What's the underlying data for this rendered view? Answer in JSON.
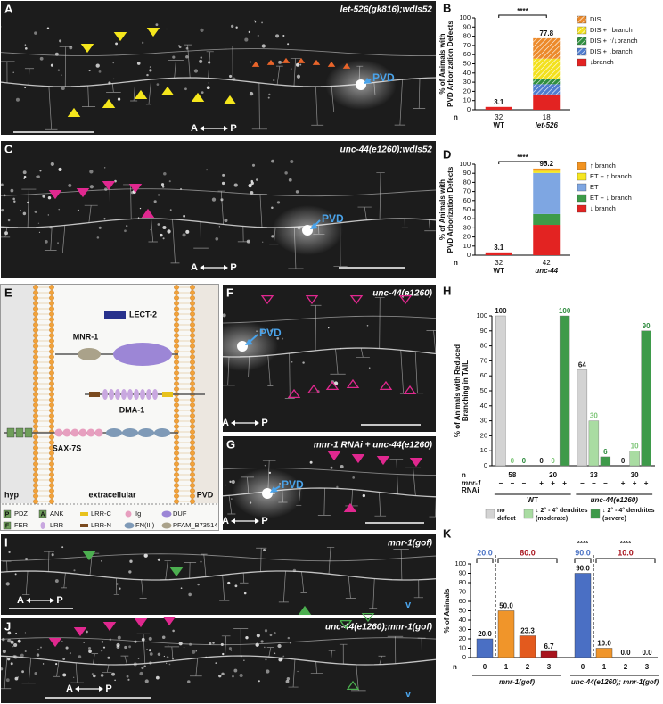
{
  "images": [
    {
      "letter": "A",
      "caption": "let-526(gk816);wdIs52",
      "pvd": "PVD",
      "axis_left": "A",
      "axis_right": "P"
    },
    {
      "letter": "C",
      "caption": "unc-44(e1260);wdIs52",
      "pvd": "PVD",
      "axis_left": "A",
      "axis_right": "P"
    },
    {
      "letter": "F",
      "caption": "unc-44(e1260)",
      "pvd": "PVD",
      "axis_left": "A",
      "axis_right": "P"
    },
    {
      "letter": "G",
      "caption": "mnr-1 RNAi + unc-44(e1260)",
      "pvd": "PVD",
      "axis_left": "A",
      "axis_right": "P"
    },
    {
      "letter": "I",
      "caption": "mnr-1(gof)",
      "axis_left": "A",
      "axis_right": "P",
      "marker": "v"
    },
    {
      "letter": "J",
      "caption": "unc-44(e1260);mnr-1(gof)",
      "axis_left": "A",
      "axis_right": "P",
      "marker": "v"
    }
  ],
  "diagram": {
    "letter": "E",
    "proteins": [
      {
        "label": "LECT-2"
      },
      {
        "label": "MNR-1"
      },
      {
        "label": "DMA-1"
      },
      {
        "label": "SAX-7S"
      }
    ],
    "regions": [
      "hyp",
      "extracellular",
      "PVD"
    ],
    "legend": [
      {
        "icon": "P",
        "label": "PDZ"
      },
      {
        "icon": "A",
        "label": "ANK"
      },
      {
        "label": "LRR-C"
      },
      {
        "label": "Ig"
      },
      {
        "label": "DUF"
      },
      {
        "icon": "F",
        "label": "FER"
      },
      {
        "label": "LRR"
      },
      {
        "label": "LRR-N"
      },
      {
        "label": "FN(III)"
      },
      {
        "label": "PFAM_B73514"
      }
    ]
  },
  "chart_data": [
    {
      "letter": "B",
      "type": "stacked_bar",
      "ylabel": [
        "% of Animals with",
        "PVD Arborization Defects"
      ],
      "categories": [
        "WT",
        "let-526"
      ],
      "n_label": "n",
      "n": [
        32,
        18
      ],
      "totals": [
        3.1,
        77.8
      ],
      "significance": "****",
      "ylim": [
        0,
        100
      ],
      "yticks": [
        0,
        10,
        20,
        30,
        40,
        50,
        60,
        70,
        80,
        90,
        100
      ],
      "series": [
        {
          "name": "↓branch",
          "color": "#e32322",
          "hatch": false,
          "values": [
            3.1,
            16.7
          ]
        },
        {
          "name": "DIS + ↓branch",
          "color": "#4f7ccf",
          "hatch": true,
          "values": [
            0,
            11.1
          ]
        },
        {
          "name": "DIS + ↑/↓branch",
          "color": "#2f8f3f",
          "hatch": true,
          "values": [
            0,
            5.6
          ]
        },
        {
          "name": "DIS + ↑branch",
          "color": "#f3e11d",
          "hatch": true,
          "values": [
            0,
            22.2
          ]
        },
        {
          "name": "DIS",
          "color": "#ec8a2b",
          "hatch": true,
          "values": [
            0,
            22.2
          ]
        }
      ]
    },
    {
      "letter": "D",
      "type": "stacked_bar",
      "ylabel": [
        "% of Animals with",
        "PVD Arborization Defects"
      ],
      "categories": [
        "WT",
        "unc-44"
      ],
      "n_label": "n",
      "n": [
        32,
        42
      ],
      "totals": [
        3.1,
        95.2
      ],
      "significance": "****",
      "ylim": [
        0,
        100
      ],
      "yticks": [
        0,
        10,
        20,
        30,
        40,
        50,
        60,
        70,
        80,
        90,
        100
      ],
      "series": [
        {
          "name": "↓ branch",
          "color": "#e32322",
          "hatch": false,
          "values": [
            3.1,
            33.3
          ]
        },
        {
          "name": "ET + ↓ branch",
          "color": "#3d9b48",
          "hatch": false,
          "values": [
            0,
            11.9
          ]
        },
        {
          "name": "ET",
          "color": "#7ea6e2",
          "hatch": false,
          "values": [
            0,
            45.2
          ]
        },
        {
          "name": "ET + ↑ branch",
          "color": "#f6e61f",
          "hatch": false,
          "values": [
            0,
            2.4
          ]
        },
        {
          "name": "↑ branch",
          "color": "#f29320",
          "hatch": false,
          "values": [
            0,
            2.4
          ]
        }
      ]
    },
    {
      "letter": "H",
      "type": "grouped_bar",
      "ylabel": [
        "% of Animals with Reduced",
        "Branching in TAIL"
      ],
      "n_label": "n",
      "n": [
        58,
        20,
        33,
        30
      ],
      "rnai_label": [
        "mnr-1",
        "RNAi"
      ],
      "rnai": [
        "−",
        "+",
        "−",
        "+"
      ],
      "genotypes": [
        "WT",
        "unc-44(e1260)"
      ],
      "ylim": [
        0,
        100
      ],
      "yticks": [
        0,
        10,
        20,
        30,
        40,
        50,
        60,
        70,
        80,
        90,
        100
      ],
      "series": [
        {
          "name": [
            "no",
            "defect"
          ],
          "color": "#d3d3d3",
          "label_color": "#1a1a1a",
          "values": [
            100,
            0,
            64,
            0
          ]
        },
        {
          "name": [
            "↓ 2° - 4° dendrites",
            "(moderate)"
          ],
          "color": "#a9dca2",
          "label_color": "#7cc576",
          "values": [
            0,
            0,
            30,
            10
          ]
        },
        {
          "name": [
            "↓ 2° - 4° dendrites",
            "(severe)"
          ],
          "color": "#3e9a4a",
          "label_color": "#2e8b3e",
          "values": [
            0,
            100,
            6,
            90
          ]
        }
      ]
    },
    {
      "letter": "K",
      "type": "bar",
      "ylabel": "% of Animals",
      "n_label": "n",
      "ylim": [
        0,
        100
      ],
      "yticks": [
        0,
        10,
        20,
        30,
        40,
        50,
        60,
        70,
        80,
        90,
        100
      ],
      "colors": [
        "#4a6fc4",
        "#f0952a",
        "#e35a1e",
        "#a8141d"
      ],
      "groups": [
        {
          "label": "mnr-1(gof)",
          "categories": [
            "0",
            "1",
            "2",
            "3"
          ],
          "values": [
            20,
            50,
            23.3,
            6.7
          ],
          "value_labels": [
            "20.0",
            "50.0",
            "23.3",
            "6.7"
          ],
          "summary": [
            {
              "value": 20,
              "label": "20.0",
              "color": "#4a72c4"
            },
            {
              "value": 80,
              "label": "80.0",
              "color": "#a8141d"
            }
          ]
        },
        {
          "label": "unc-44(e1260); mnr-1(gof)",
          "categories": [
            "0",
            "1",
            "2",
            "3"
          ],
          "values": [
            90,
            10,
            0,
            0
          ],
          "value_labels": [
            "90.0",
            "10.0",
            "0.0",
            "0.0"
          ],
          "summary": [
            {
              "value": 90,
              "label": "90.0",
              "color": "#4a72c4"
            },
            {
              "value": 10,
              "label": "10.0",
              "color": "#a8141d"
            }
          ],
          "significance": "****"
        }
      ]
    }
  ]
}
